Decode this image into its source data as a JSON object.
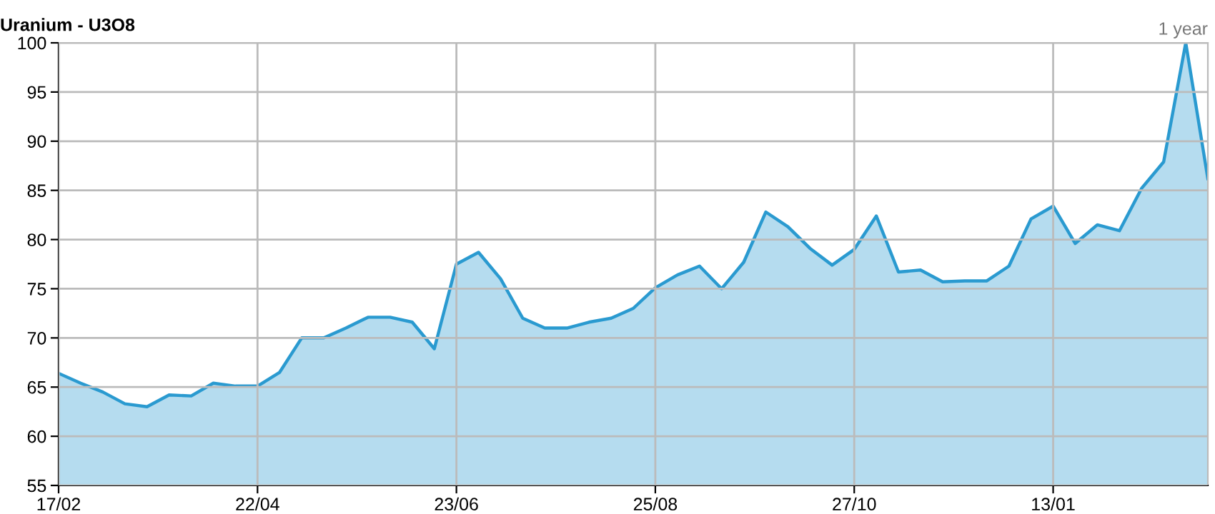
{
  "chart_data": {
    "type": "area",
    "title": "Uranium - U3O8",
    "annotations": [
      "1 year"
    ],
    "categories": [
      "17/02",
      null,
      null,
      null,
      null,
      null,
      null,
      null,
      null,
      "22/04",
      null,
      null,
      null,
      null,
      null,
      null,
      null,
      null,
      "23/06",
      null,
      null,
      null,
      null,
      null,
      null,
      null,
      null,
      "25/08",
      null,
      null,
      null,
      null,
      null,
      null,
      null,
      null,
      "27/10",
      null,
      null,
      null,
      null,
      null,
      null,
      null,
      null,
      "13/01",
      null,
      null,
      null,
      null,
      null,
      null,
      null
    ],
    "series": [
      {
        "color": "#2a9ad0",
        "values": [
          66.4,
          65.4,
          64.5,
          63.3,
          63.0,
          64.2,
          64.1,
          65.4,
          65.1,
          65.1,
          66.5,
          70.0,
          70.0,
          71.0,
          72.1,
          72.1,
          71.6,
          68.9,
          77.5,
          78.7,
          76.0,
          72.0,
          71.0,
          71.0,
          71.6,
          72.0,
          73.0,
          75.1,
          76.4,
          77.3,
          75.0,
          77.7,
          82.8,
          81.3,
          79.1,
          77.4,
          79.0,
          82.4,
          76.7,
          76.9,
          75.7,
          75.8,
          75.8,
          77.3,
          82.1,
          83.4,
          79.6,
          81.5,
          80.9,
          85.2,
          87.9,
          100,
          86.2
        ]
      }
    ],
    "ylim": [
      55,
      100
    ],
    "yticks": [
      55,
      60,
      65,
      70,
      75,
      80,
      85,
      90,
      95,
      100
    ],
    "grid": true
  }
}
